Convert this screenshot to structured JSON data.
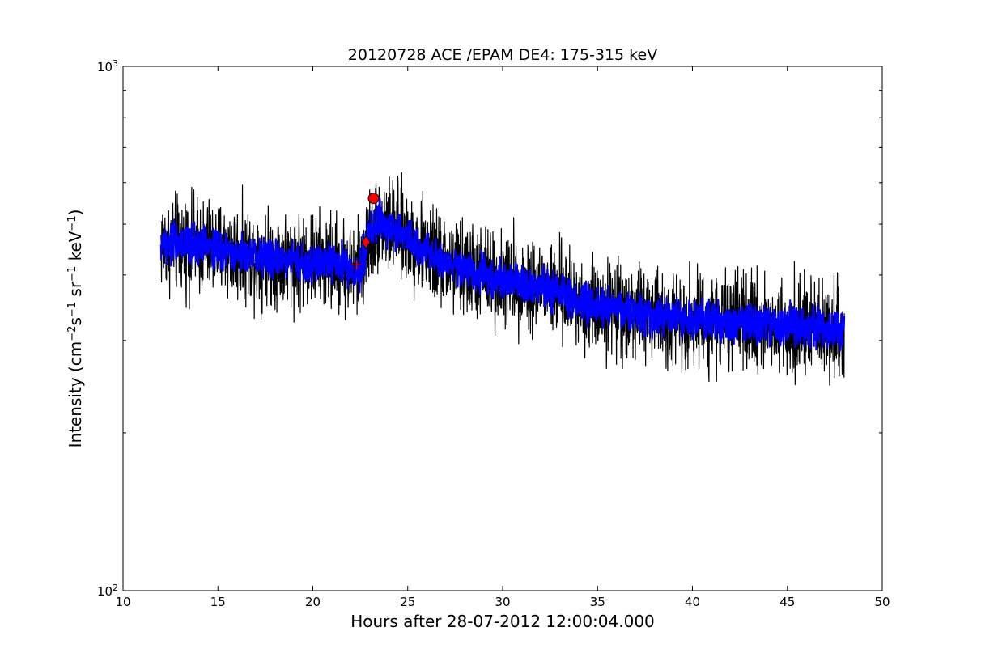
{
  "chart_data": {
    "type": "line",
    "title": "20120728 ACE /EPAM DE4: 175-315 keV",
    "xlabel": "Hours after 28-07-2012 12:00:04.000",
    "ylabel_parts": {
      "prefix": "Intensity (cm",
      "exp1": "−2",
      "mid1": "s",
      "exp2": "−1",
      "mid2": " sr",
      "exp3": "−1",
      "mid3": " keV",
      "exp4": "−1",
      "suffix": ")"
    },
    "xlim": [
      10,
      50
    ],
    "ylim": [
      100,
      1000
    ],
    "yscale": "log",
    "xticks": [
      "10",
      "15",
      "20",
      "25",
      "30",
      "35",
      "40",
      "45",
      "50"
    ],
    "xtick_values": [
      10,
      15,
      20,
      25,
      30,
      35,
      40,
      45,
      50
    ],
    "yticks": [
      {
        "value": 100,
        "base": "10",
        "exp": "2"
      },
      {
        "value": 1000,
        "base": "10",
        "exp": "3"
      }
    ],
    "grid": false,
    "colors": {
      "raw": "#000000",
      "smoothed": "#0000ff",
      "marker": "#ff0000"
    },
    "series": [
      {
        "style": "raw",
        "x": [
          12.0,
          14.0,
          16.0,
          18.0,
          20.0,
          21.5,
          22.0,
          22.5,
          23.0,
          23.5,
          24.0,
          24.5,
          25.0,
          26.0,
          27.0,
          28.0,
          30.0,
          32.0,
          33.0,
          34.0,
          36.0,
          38.0,
          40.0,
          42.0,
          44.0,
          46.0,
          48.0
        ],
        "y": [
          460,
          455,
          440,
          430,
          425,
          420,
          405,
          410,
          475,
          505,
          495,
          485,
          470,
          445,
          420,
          410,
          395,
          380,
          370,
          355,
          345,
          335,
          330,
          325,
          322,
          318,
          312
        ],
        "noise_band": 0.09
      },
      {
        "style": "smoothed",
        "x": [
          12.0,
          14.0,
          16.0,
          18.0,
          20.0,
          21.5,
          22.0,
          22.5,
          23.0,
          23.5,
          24.0,
          24.5,
          25.0,
          26.0,
          27.0,
          28.0,
          30.0,
          32.0,
          33.0,
          34.0,
          36.0,
          38.0,
          40.0,
          42.0,
          44.0,
          46.0,
          48.0
        ],
        "y": [
          460,
          455,
          440,
          430,
          425,
          420,
          405,
          410,
          475,
          505,
          495,
          485,
          470,
          445,
          420,
          410,
          395,
          380,
          370,
          355,
          345,
          335,
          330,
          325,
          322,
          318,
          312
        ],
        "noise_band": 0.035
      }
    ],
    "markers": [
      {
        "shape": "plus",
        "x": 22.3,
        "y": 418
      },
      {
        "shape": "diamond",
        "x": 22.8,
        "y": 462
      },
      {
        "shape": "circle",
        "x": 23.2,
        "y": 560
      }
    ]
  }
}
